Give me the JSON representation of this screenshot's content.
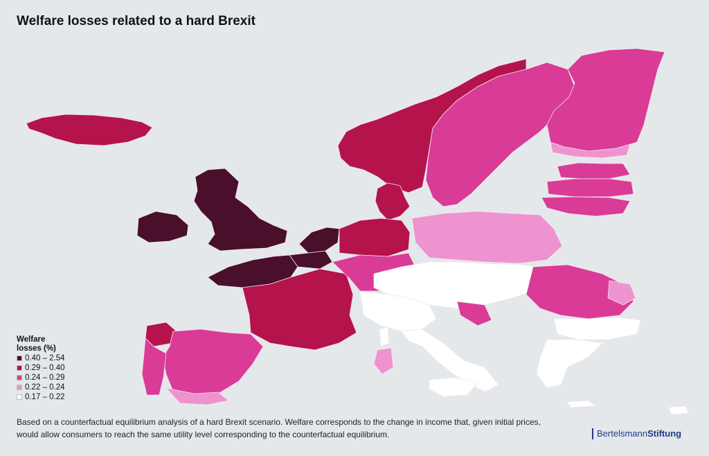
{
  "title": "Welfare losses related to a hard Brexit",
  "legend": {
    "title_line1": "Welfare",
    "title_line2": "losses (%)",
    "classes": [
      {
        "label": "0.40 – 2.54",
        "color": "#4a0f2a"
      },
      {
        "label": "0.29 – 0.40",
        "color": "#b5134c"
      },
      {
        "label": "0.24 – 0.29",
        "color": "#d93b97"
      },
      {
        "label": "0.22 – 0.24",
        "color": "#ee93cf"
      },
      {
        "label": "0.17 – 0.22",
        "color": "#ffffff"
      }
    ]
  },
  "footnote_line1": "Based on a counterfactual equilibrium analysis of a hard Brexit scenario. Welfare corresponds to the change in income that, given initial prices,",
  "footnote_line2": "would allow consumers to reach the same utility level corresponding to the counterfactual equilibrium.",
  "brand": {
    "part1": "Bertelsmann",
    "part2": "Stiftung"
  },
  "colors": {
    "background": "#e4e8ea",
    "borders": "#e8e0e6"
  }
}
